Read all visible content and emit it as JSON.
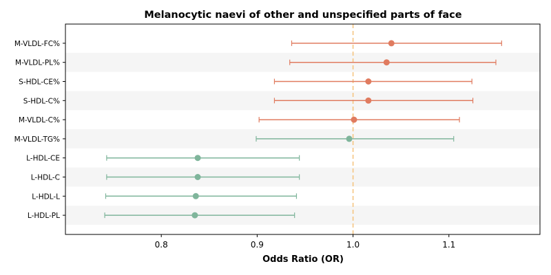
{
  "chart_data": {
    "type": "forest",
    "title": "Melanocytic naevi of other and unspecified parts of face",
    "xlabel": "Odds Ratio (OR)",
    "ylabel": "",
    "xlim": [
      0.7,
      1.195
    ],
    "xticks": [
      0.8,
      0.9,
      1.0,
      1.1
    ],
    "xtick_labels": [
      "0.8",
      "0.9",
      "1.0",
      "1.1"
    ],
    "reference_line": 1.0,
    "colors": {
      "positive": "#e07b5f",
      "negative": "#7fb59b",
      "reference": "#f5c27a",
      "band": "#f5f5f5"
    },
    "rows": [
      {
        "label": "M-VLDL-FC%",
        "or": 1.04,
        "lower": 0.936,
        "upper": 1.155,
        "group": "positive"
      },
      {
        "label": "M-VLDL-PL%",
        "or": 1.035,
        "lower": 0.934,
        "upper": 1.149,
        "group": "positive"
      },
      {
        "label": "S-HDL-CE%",
        "or": 1.016,
        "lower": 0.918,
        "upper": 1.124,
        "group": "positive"
      },
      {
        "label": "S-HDL-C%",
        "or": 1.016,
        "lower": 0.918,
        "upper": 1.125,
        "group": "positive"
      },
      {
        "label": "M-VLDL-C%",
        "or": 1.001,
        "lower": 0.902,
        "upper": 1.111,
        "group": "positive"
      },
      {
        "label": "M-VLDL-TG%",
        "or": 0.996,
        "lower": 0.899,
        "upper": 1.105,
        "group": "negative"
      },
      {
        "label": "L-HDL-CE",
        "or": 0.838,
        "lower": 0.743,
        "upper": 0.944,
        "group": "negative"
      },
      {
        "label": "L-HDL-C",
        "or": 0.838,
        "lower": 0.743,
        "upper": 0.944,
        "group": "negative"
      },
      {
        "label": "L-HDL-L",
        "or": 0.836,
        "lower": 0.742,
        "upper": 0.941,
        "group": "negative"
      },
      {
        "label": "L-HDL-PL",
        "or": 0.835,
        "lower": 0.741,
        "upper": 0.939,
        "group": "negative"
      }
    ]
  }
}
